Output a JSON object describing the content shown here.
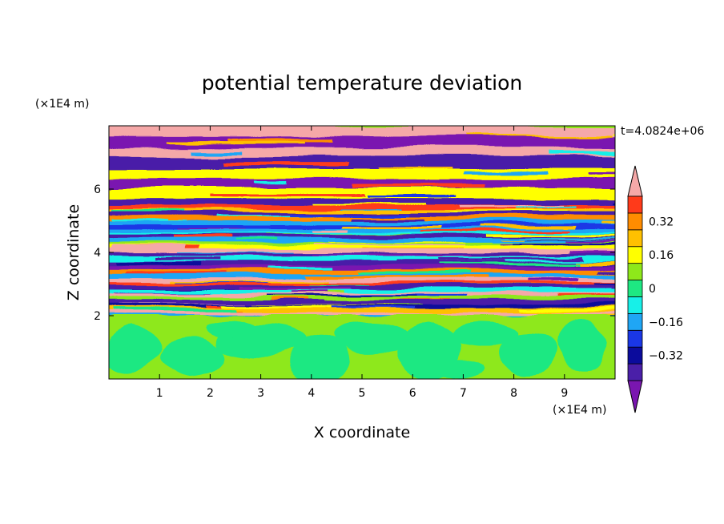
{
  "chart_data": {
    "type": "heatmap",
    "title": "potential temperature deviation",
    "xlabel": "X coordinate",
    "ylabel": "Z coordinate",
    "x_unit": "(×1E4 m)",
    "y_unit": "(×1E4 m)",
    "time_label": "t=4.0824e+06",
    "xlim": [
      0,
      10
    ],
    "ylim": [
      0,
      8
    ],
    "x_ticks": [
      "1",
      "2",
      "3",
      "4",
      "5",
      "6",
      "7",
      "8",
      "9"
    ],
    "y_ticks": [
      "2",
      "4",
      "6"
    ],
    "colorbar": {
      "levels": [
        -0.48,
        -0.4,
        -0.32,
        -0.24,
        -0.16,
        -0.08,
        0,
        0.08,
        0.16,
        0.24,
        0.32,
        0.4,
        0.48
      ],
      "tick_labels": [
        "0.32",
        "0.16",
        "0",
        "−0.16",
        "−0.32"
      ],
      "colors": [
        "#7a16b0",
        "#4a1fa8",
        "#0b0b9c",
        "#1a37e6",
        "#1fa6f5",
        "#17f0e8",
        "#1ee882",
        "#8ee81a",
        "#ffff00",
        "#ffc000",
        "#ff8c00",
        "#ff3a1a",
        "#f5a8a8"
      ],
      "extend": "both"
    },
    "regions": [
      {
        "z_range": [
          0,
          2
        ],
        "dominant_values": [
          0,
          0.08
        ],
        "pattern": "mixed layer with swirling eddies"
      },
      {
        "z_range": [
          2,
          5.5
        ],
        "dominant_values": [
          -0.4,
          0.4
        ],
        "pattern": "thin horizontal layered bands"
      },
      {
        "z_range": [
          5.5,
          8
        ],
        "dominant_values": [
          -0.48,
          0.48
        ],
        "pattern": "broad alternating pink and purple bands"
      }
    ]
  }
}
